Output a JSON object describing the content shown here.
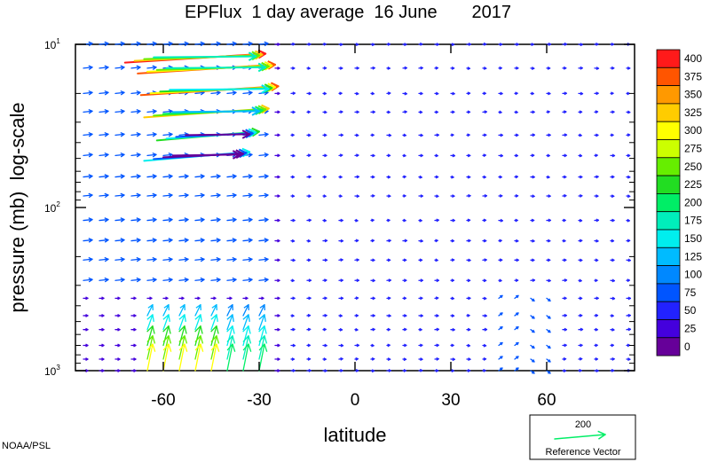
{
  "chart_data": {
    "type": "vector-field",
    "title": "EPFlux  1 day average  16 June       2017",
    "xlabel": "latitude",
    "ylabel": "pressure (mb)  log-scale",
    "x_ticks": [
      -60,
      -30,
      0,
      30,
      60
    ],
    "xlim": [
      -87.5,
      87.5
    ],
    "ylim_mb": [
      1000,
      10
    ],
    "y_scale": "log",
    "y_tick_labels": [
      {
        "value": 10,
        "base": "10",
        "exp": "1"
      },
      {
        "value": 100,
        "base": "10",
        "exp": "2"
      },
      {
        "value": 1000,
        "base": "10",
        "exp": "3"
      }
    ],
    "colorbar": {
      "levels": [
        "400",
        "375",
        "350",
        "325",
        "300",
        "275",
        "250",
        "225",
        "200",
        "175",
        "150",
        "125",
        "100",
        "75",
        "50",
        "25",
        "0"
      ],
      "colors": [
        "#ff1a1a",
        "#ff5500",
        "#ff9900",
        "#ffcc00",
        "#ffff00",
        "#ccff00",
        "#66ee00",
        "#22dd22",
        "#00ee66",
        "#00eebb",
        "#00eeee",
        "#00bbff",
        "#0088ff",
        "#0055ff",
        "#2222ff",
        "#4400dd",
        "#660099"
      ]
    },
    "reference_vector": {
      "value": "200",
      "label": "Reference Vector"
    },
    "credit": "NOAA/PSL",
    "pressure_levels_mb": [
      10,
      14,
      20,
      26,
      36,
      48,
      65,
      85,
      120,
      160,
      210,
      280,
      360,
      460,
      560,
      700,
      850,
      1000
    ],
    "lat_step_deg": 5,
    "jets": [
      {
        "p_mb": 12,
        "lat_start": -72,
        "lat_end": -28,
        "magnitude": 400
      },
      {
        "p_mb": 14,
        "lat_start": -68,
        "lat_end": -25,
        "magnitude": 390
      },
      {
        "p_mb": 19,
        "lat_start": -67,
        "lat_end": -24,
        "magnitude": 380
      },
      {
        "p_mb": 26,
        "lat_start": -66,
        "lat_end": -27,
        "magnitude": 340
      },
      {
        "p_mb": 36,
        "lat_start": -62,
        "lat_end": -30,
        "magnitude": 230
      },
      {
        "p_mb": 48,
        "lat_start": -66,
        "lat_end": -33,
        "magnitude": 150
      }
    ],
    "upward_region": {
      "lat_min": -65,
      "lat_max": -30,
      "p_min_mb": 380,
      "p_max_mb": 1000,
      "peak_magnitude": 310
    }
  }
}
